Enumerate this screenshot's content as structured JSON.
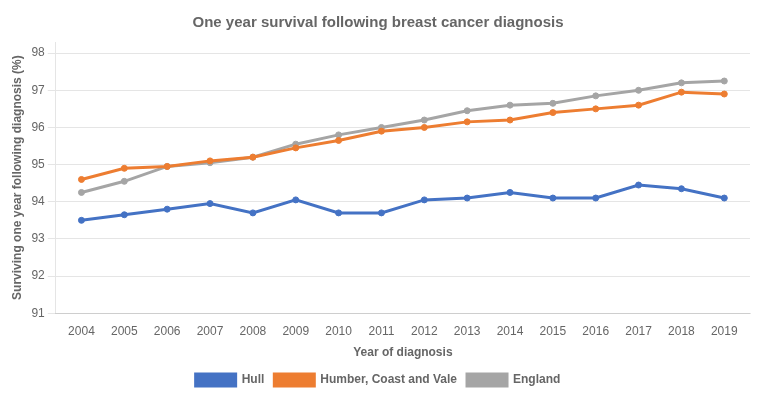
{
  "chart_data": {
    "type": "line",
    "title": "One year survival following breast cancer diagnosis",
    "xlabel": "Year of diagnosis",
    "ylabel": "Surviving one year following diagnosis (%)",
    "x": [
      2004,
      2005,
      2006,
      2007,
      2008,
      2009,
      2010,
      2011,
      2012,
      2013,
      2014,
      2015,
      2016,
      2017,
      2018,
      2019
    ],
    "series": [
      {
        "name": "Hull",
        "color": "#4472C4",
        "marker": "circle",
        "values": [
          93.5,
          93.65,
          93.8,
          93.95,
          93.7,
          94.05,
          93.7,
          93.7,
          94.05,
          94.1,
          94.25,
          94.1,
          94.1,
          94.45,
          94.35,
          94.1
        ]
      },
      {
        "name": "Humber, Coast and Vale",
        "color": "#ED7D31",
        "marker": "circle",
        "values": [
          94.6,
          94.9,
          94.95,
          95.1,
          95.2,
          95.45,
          95.65,
          95.9,
          96.0,
          96.15,
          96.2,
          96.4,
          96.5,
          96.6,
          96.95,
          96.9
        ]
      },
      {
        "name": "England",
        "color": "#A5A5A5",
        "marker": "circle",
        "values": [
          94.25,
          94.55,
          94.95,
          95.05,
          95.2,
          95.55,
          95.8,
          96.0,
          96.2,
          96.45,
          96.6,
          96.65,
          96.85,
          97.0,
          97.2,
          97.25
        ]
      }
    ],
    "xlim": [
      2003.4,
      2019.6
    ],
    "xticks": [
      2004,
      2005,
      2006,
      2007,
      2008,
      2009,
      2010,
      2011,
      2012,
      2013,
      2014,
      2015,
      2016,
      2017,
      2018,
      2019
    ],
    "ylim": [
      91,
      98.3
    ],
    "yticks": [
      91,
      92,
      93,
      94,
      95,
      96,
      97,
      98
    ],
    "grid": "y",
    "legend": "bottom"
  }
}
